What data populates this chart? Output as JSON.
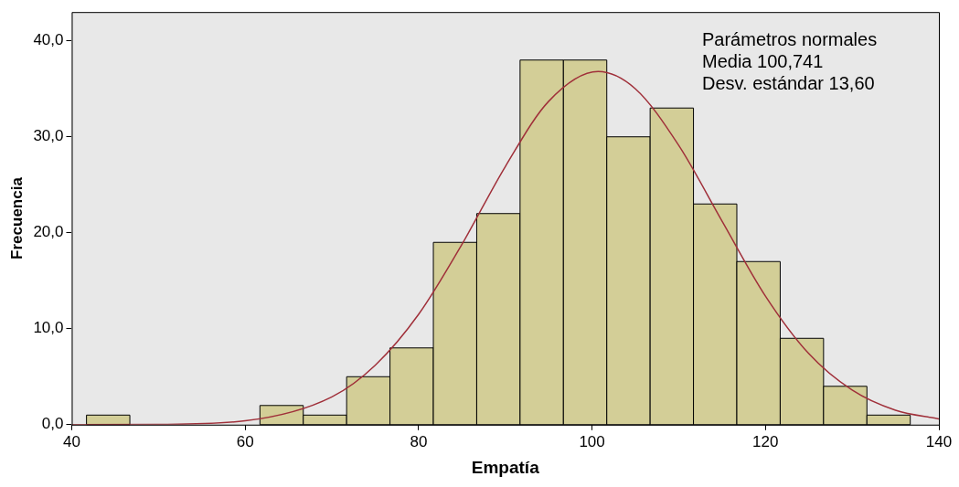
{
  "chart_data": {
    "type": "histogram",
    "xlabel": "Empatía",
    "ylabel": "Frecuencia",
    "bins": [
      41.7,
      46.7,
      61.7,
      66.7,
      71.7,
      76.7,
      81.7,
      86.7,
      91.7,
      96.7,
      101.7,
      106.7,
      111.7,
      116.7,
      121.7,
      126.7,
      131.7,
      136.7
    ],
    "values": [
      1,
      0,
      2,
      1,
      5,
      8,
      19,
      22,
      38,
      38,
      30,
      33,
      23,
      17,
      9,
      4,
      1
    ],
    "color": "#d3ce97",
    "series": [
      {
        "type": "line",
        "color": "#a0303a",
        "x": [
          40,
          50,
          60,
          70,
          75,
          80,
          85,
          90,
          95,
          100.7,
          105,
          110,
          115,
          120,
          125,
          130,
          135,
          140
        ],
        "values": [
          0,
          0.03,
          0.4,
          2.9,
          6.2,
          11.5,
          18.8,
          26.9,
          33.7,
          36.8,
          35,
          29.1,
          21.2,
          13.4,
          7.4,
          3.6,
          1.5,
          0.6
        ]
      }
    ],
    "xlim": [
      40,
      140
    ],
    "xticks": [
      40,
      60,
      80,
      100,
      120,
      140
    ],
    "ylim": [
      0,
      43
    ],
    "yticks": [
      {
        "value": 0,
        "label": "0,0"
      },
      {
        "value": 10,
        "label": "10,0"
      },
      {
        "value": 20,
        "label": "20,0"
      },
      {
        "value": 30,
        "label": "30,0"
      },
      {
        "value": 40,
        "label": "40,0"
      }
    ],
    "grid": false,
    "legend": false,
    "marker": "none",
    "line_style": "solid",
    "annotations": [
      "Parámetros normales",
      "Media 100,741",
      "Desv. estándar 13,60"
    ]
  }
}
